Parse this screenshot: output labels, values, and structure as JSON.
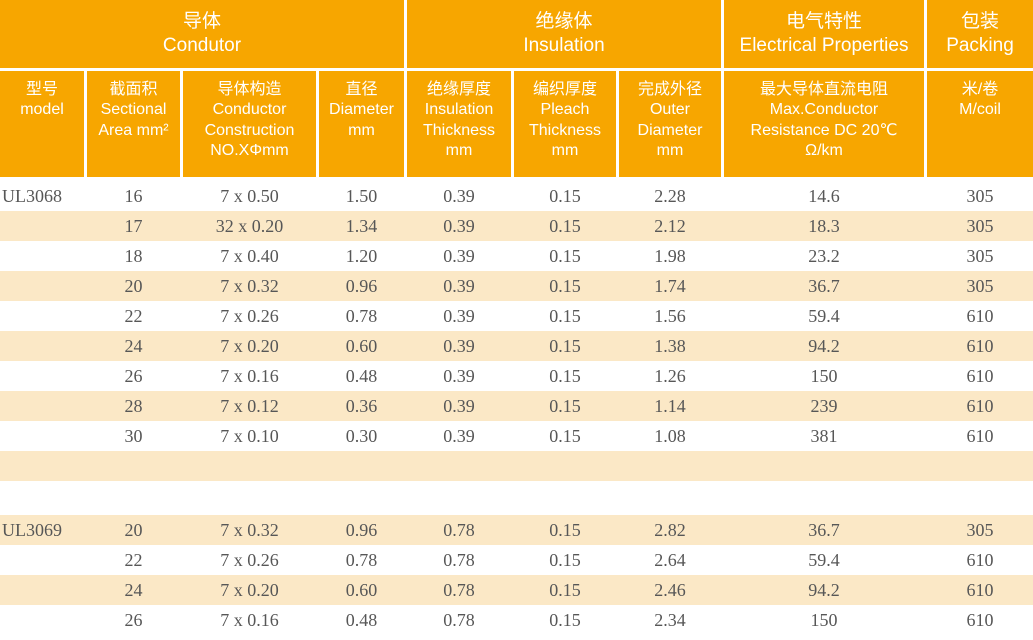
{
  "table": {
    "title": "cable-specification-table",
    "colors": {
      "header_bg": "#F7A600",
      "header_text": "#FFFFFF",
      "stripe_bg": "#FBE8C6",
      "body_text": "#575757"
    },
    "groups": [
      {
        "key": "conductor",
        "zh": "导体",
        "en": "Condutor"
      },
      {
        "key": "insulation",
        "zh": "绝缘体",
        "en": "Insulation"
      },
      {
        "key": "electrical",
        "zh": "电气特性",
        "en": "Electrical Properties"
      },
      {
        "key": "packing",
        "zh": "包装",
        "en": "Packing"
      }
    ],
    "columns": [
      {
        "key": "model",
        "lines": [
          "型号",
          "model"
        ]
      },
      {
        "key": "sectional-area",
        "lines": [
          "截面积",
          "Sectional",
          "Area mm²"
        ]
      },
      {
        "key": "conductor-construction",
        "lines": [
          "导体构造",
          "Conductor",
          "Construction",
          "NO.XΦmm"
        ]
      },
      {
        "key": "diameter",
        "lines": [
          "直径",
          "Diameter",
          "mm"
        ]
      },
      {
        "key": "insulation-thickness",
        "lines": [
          "绝缘厚度",
          "Insulation",
          "Thickness",
          "mm"
        ]
      },
      {
        "key": "pleach-thickness",
        "lines": [
          "编织厚度",
          "Pleach",
          "Thickness",
          "mm"
        ]
      },
      {
        "key": "outer-diameter",
        "lines": [
          "完成外径",
          "Outer",
          "Diameter",
          "mm"
        ]
      },
      {
        "key": "max-resistance",
        "lines": [
          "最大导体直流电阻",
          "Max.Conductor",
          "Resistance DC 20℃",
          "Ω/km"
        ]
      },
      {
        "key": "m-per-coil",
        "lines": [
          "米/卷",
          "M/coil"
        ]
      }
    ],
    "sections": [
      {
        "model": "UL3068",
        "rows": [
          [
            "16",
            "7 x 0.50",
            "1.50",
            "0.39",
            "0.15",
            "2.28",
            "14.6",
            "305"
          ],
          [
            "17",
            "32 x 0.20",
            "1.34",
            "0.39",
            "0.15",
            "2.12",
            "18.3",
            "305"
          ],
          [
            "18",
            "7 x 0.40",
            "1.20",
            "0.39",
            "0.15",
            "1.98",
            "23.2",
            "305"
          ],
          [
            "20",
            "7 x 0.32",
            "0.96",
            "0.39",
            "0.15",
            "1.74",
            "36.7",
            "305"
          ],
          [
            "22",
            "7 x 0.26",
            "0.78",
            "0.39",
            "0.15",
            "1.56",
            "59.4",
            "610"
          ],
          [
            "24",
            "7 x 0.20",
            "0.60",
            "0.39",
            "0.15",
            "1.38",
            "94.2",
            "610"
          ],
          [
            "26",
            "7 x 0.16",
            "0.48",
            "0.39",
            "0.15",
            "1.26",
            "150",
            "610"
          ],
          [
            "28",
            "7 x 0.12",
            "0.36",
            "0.39",
            "0.15",
            "1.14",
            "239",
            "610"
          ],
          [
            "30",
            "7 x 0.10",
            "0.30",
            "0.39",
            "0.15",
            "1.08",
            "381",
            "610"
          ]
        ]
      },
      {
        "model": "UL3069",
        "rows": [
          [
            "20",
            "7 x 0.32",
            "0.96",
            "0.78",
            "0.15",
            "2.82",
            "36.7",
            "305"
          ],
          [
            "22",
            "7 x 0.26",
            "0.78",
            "0.78",
            "0.15",
            "2.64",
            "59.4",
            "610"
          ],
          [
            "24",
            "7 x 0.20",
            "0.60",
            "0.78",
            "0.15",
            "2.46",
            "94.2",
            "610"
          ],
          [
            "26",
            "7 x 0.16",
            "0.48",
            "0.78",
            "0.15",
            "2.34",
            "150",
            "610"
          ]
        ]
      }
    ]
  }
}
